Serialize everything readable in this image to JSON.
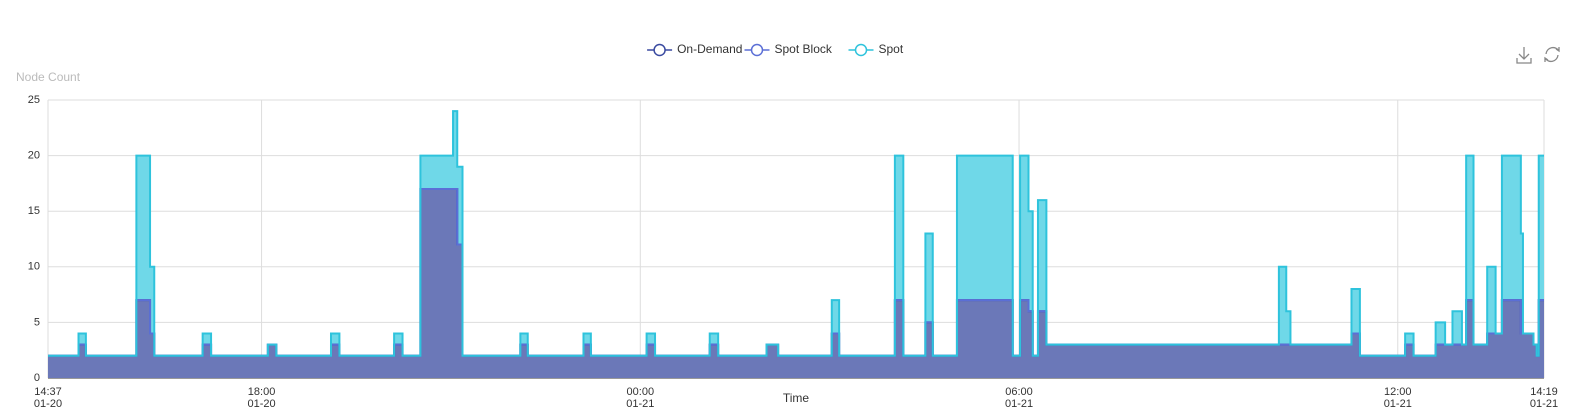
{
  "chart_data": {
    "type": "area",
    "step": true,
    "stacked": true,
    "y_label": "Node Count",
    "x_label": "Time",
    "x": [
      "01-20 14:37",
      "01-20 15:06",
      "01-20 15:13",
      "01-20 16:01",
      "01-20 16:14",
      "01-20 16:18",
      "01-20 17:04",
      "01-20 17:12",
      "01-20 18:06",
      "01-20 18:14",
      "01-20 19:06",
      "01-20 19:14",
      "01-20 20:06",
      "01-20 20:14",
      "01-20 20:31",
      "01-20 21:02",
      "01-20 21:06",
      "01-20 21:11",
      "01-20 22:06",
      "01-20 22:13",
      "01-20 23:06",
      "01-20 23:13",
      "01-21 00:06",
      "01-21 00:14",
      "01-21 01:06",
      "01-21 01:14",
      "01-21 02:00",
      "01-21 02:11",
      "01-21 03:02",
      "01-21 03:09",
      "01-21 04:02",
      "01-21 04:10",
      "01-21 04:31",
      "01-21 04:38",
      "01-21 05:01",
      "01-21 05:54",
      "01-21 06:01",
      "01-21 06:09",
      "01-21 06:13",
      "01-21 06:18",
      "01-21 06:26",
      "01-21 10:07",
      "01-21 10:14",
      "01-21 10:18",
      "01-21 11:16",
      "01-21 11:24",
      "01-21 12:07",
      "01-21 12:15",
      "01-21 12:36",
      "01-21 12:45",
      "01-21 12:52",
      "01-21 13:01",
      "01-21 13:05",
      "01-21 13:12",
      "01-21 13:25",
      "01-21 13:33",
      "01-21 13:39",
      "01-21 13:57",
      "01-21 13:59",
      "01-21 14:09",
      "01-21 14:12",
      "01-21 14:14",
      "01-21 14:19"
    ],
    "series": [
      {
        "name": "On-Demand",
        "color": "#3a4aa0",
        "fill": "#6b78b8",
        "values": [
          2,
          3,
          2,
          7,
          4,
          2,
          3,
          2,
          3,
          2,
          3,
          2,
          3,
          2,
          17,
          17,
          12,
          2,
          3,
          2,
          3,
          2,
          3,
          2,
          3,
          2,
          3,
          2,
          4,
          2,
          7,
          2,
          5,
          2,
          7,
          2,
          7,
          6,
          2,
          6,
          3,
          3,
          3,
          3,
          4,
          2,
          3,
          2,
          3,
          3,
          3,
          3,
          7,
          3,
          4,
          4,
          7,
          4,
          4,
          3,
          2,
          7,
          7
        ]
      },
      {
        "name": "Spot Block",
        "color": "#5b6fd6",
        "fill": "#6b78b8",
        "values": [
          0,
          0,
          0,
          0,
          0,
          0,
          0,
          0,
          0,
          0,
          0,
          0,
          0,
          0,
          0,
          0,
          0,
          0,
          0,
          0,
          0,
          0,
          0,
          0,
          0,
          0,
          0,
          0,
          0,
          0,
          0,
          0,
          0,
          0,
          0,
          0,
          0,
          0,
          0,
          0,
          0,
          0,
          0,
          0,
          0,
          0,
          0,
          0,
          0,
          0,
          0,
          0,
          0,
          0,
          0,
          0,
          0,
          0,
          0,
          0,
          0,
          0,
          0
        ]
      },
      {
        "name": "Spot",
        "color": "#2ec3dc",
        "fill": "#6fd8e8",
        "values": [
          0,
          1,
          0,
          13,
          6,
          0,
          1,
          0,
          0,
          0,
          1,
          0,
          1,
          0,
          3,
          7,
          7,
          0,
          1,
          0,
          1,
          0,
          1,
          0,
          1,
          0,
          0,
          0,
          3,
          0,
          13,
          0,
          8,
          0,
          13,
          0,
          13,
          9,
          0,
          10,
          0,
          7,
          3,
          0,
          4,
          0,
          1,
          0,
          2,
          0,
          3,
          0,
          13,
          0,
          6,
          0,
          13,
          9,
          0,
          0,
          0,
          13,
          13
        ]
      }
    ],
    "xlim": [
      "01-20 14:37",
      "01-21 14:19"
    ],
    "xticks": [
      {
        "value": "01-20 14:37",
        "label": [
          "14:37",
          "01-20"
        ]
      },
      {
        "value": "01-20 18:00",
        "label": [
          "18:00",
          "01-20"
        ]
      },
      {
        "value": "01-21 00:00",
        "label": [
          "00:00",
          "01-21"
        ]
      },
      {
        "value": "01-21 06:00",
        "label": [
          "06:00",
          "01-21"
        ]
      },
      {
        "value": "01-21 12:00",
        "label": [
          "12:00",
          "01-21"
        ]
      },
      {
        "value": "01-21 14:19",
        "label": [
          "14:19",
          "01-21"
        ]
      }
    ],
    "ylim": [
      0,
      25
    ],
    "yticks": [
      0,
      5,
      10,
      15,
      20,
      25
    ],
    "grid": true,
    "legend": "top"
  }
}
